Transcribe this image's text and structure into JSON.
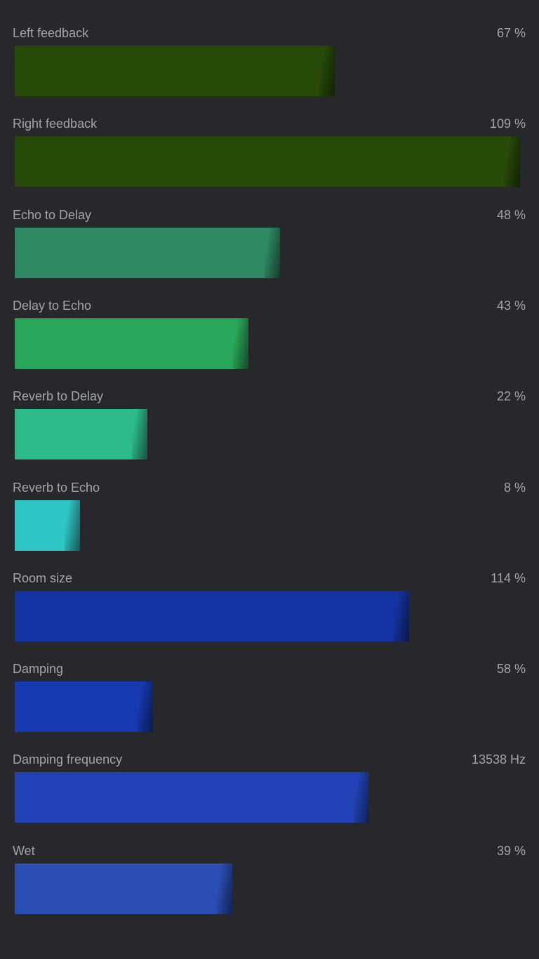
{
  "parameters": [
    {
      "label": "Left feedback",
      "value_text": "67 %",
      "fill_fraction": 0.633,
      "color": "#274a08"
    },
    {
      "label": "Right feedback",
      "value_text": "109 %",
      "fill_fraction": 1.0,
      "color": "#274a08"
    },
    {
      "label": "Echo to Delay",
      "value_text": "48 %",
      "fill_fraction": 0.525,
      "color": "#2e8a62"
    },
    {
      "label": "Delay to Echo",
      "value_text": "43 %",
      "fill_fraction": 0.463,
      "color": "#28a758"
    },
    {
      "label": "Reverb to Delay",
      "value_text": "22 %",
      "fill_fraction": 0.263,
      "color": "#2bbb88"
    },
    {
      "label": "Reverb to Echo",
      "value_text": "8 %",
      "fill_fraction": 0.129,
      "color": "#2ec5c5"
    },
    {
      "label": "Room size",
      "value_text": "114 %",
      "fill_fraction": 0.781,
      "color": "#1433a2"
    },
    {
      "label": "Damping",
      "value_text": "58 %",
      "fill_fraction": 0.274,
      "color": "#1638b0"
    },
    {
      "label": "Damping frequency",
      "value_text": "13538 Hz",
      "fill_fraction": 0.701,
      "color": "#2143b6"
    },
    {
      "label": "Wet",
      "value_text": "39 %",
      "fill_fraction": 0.43,
      "color": "#2a4cb5"
    }
  ]
}
